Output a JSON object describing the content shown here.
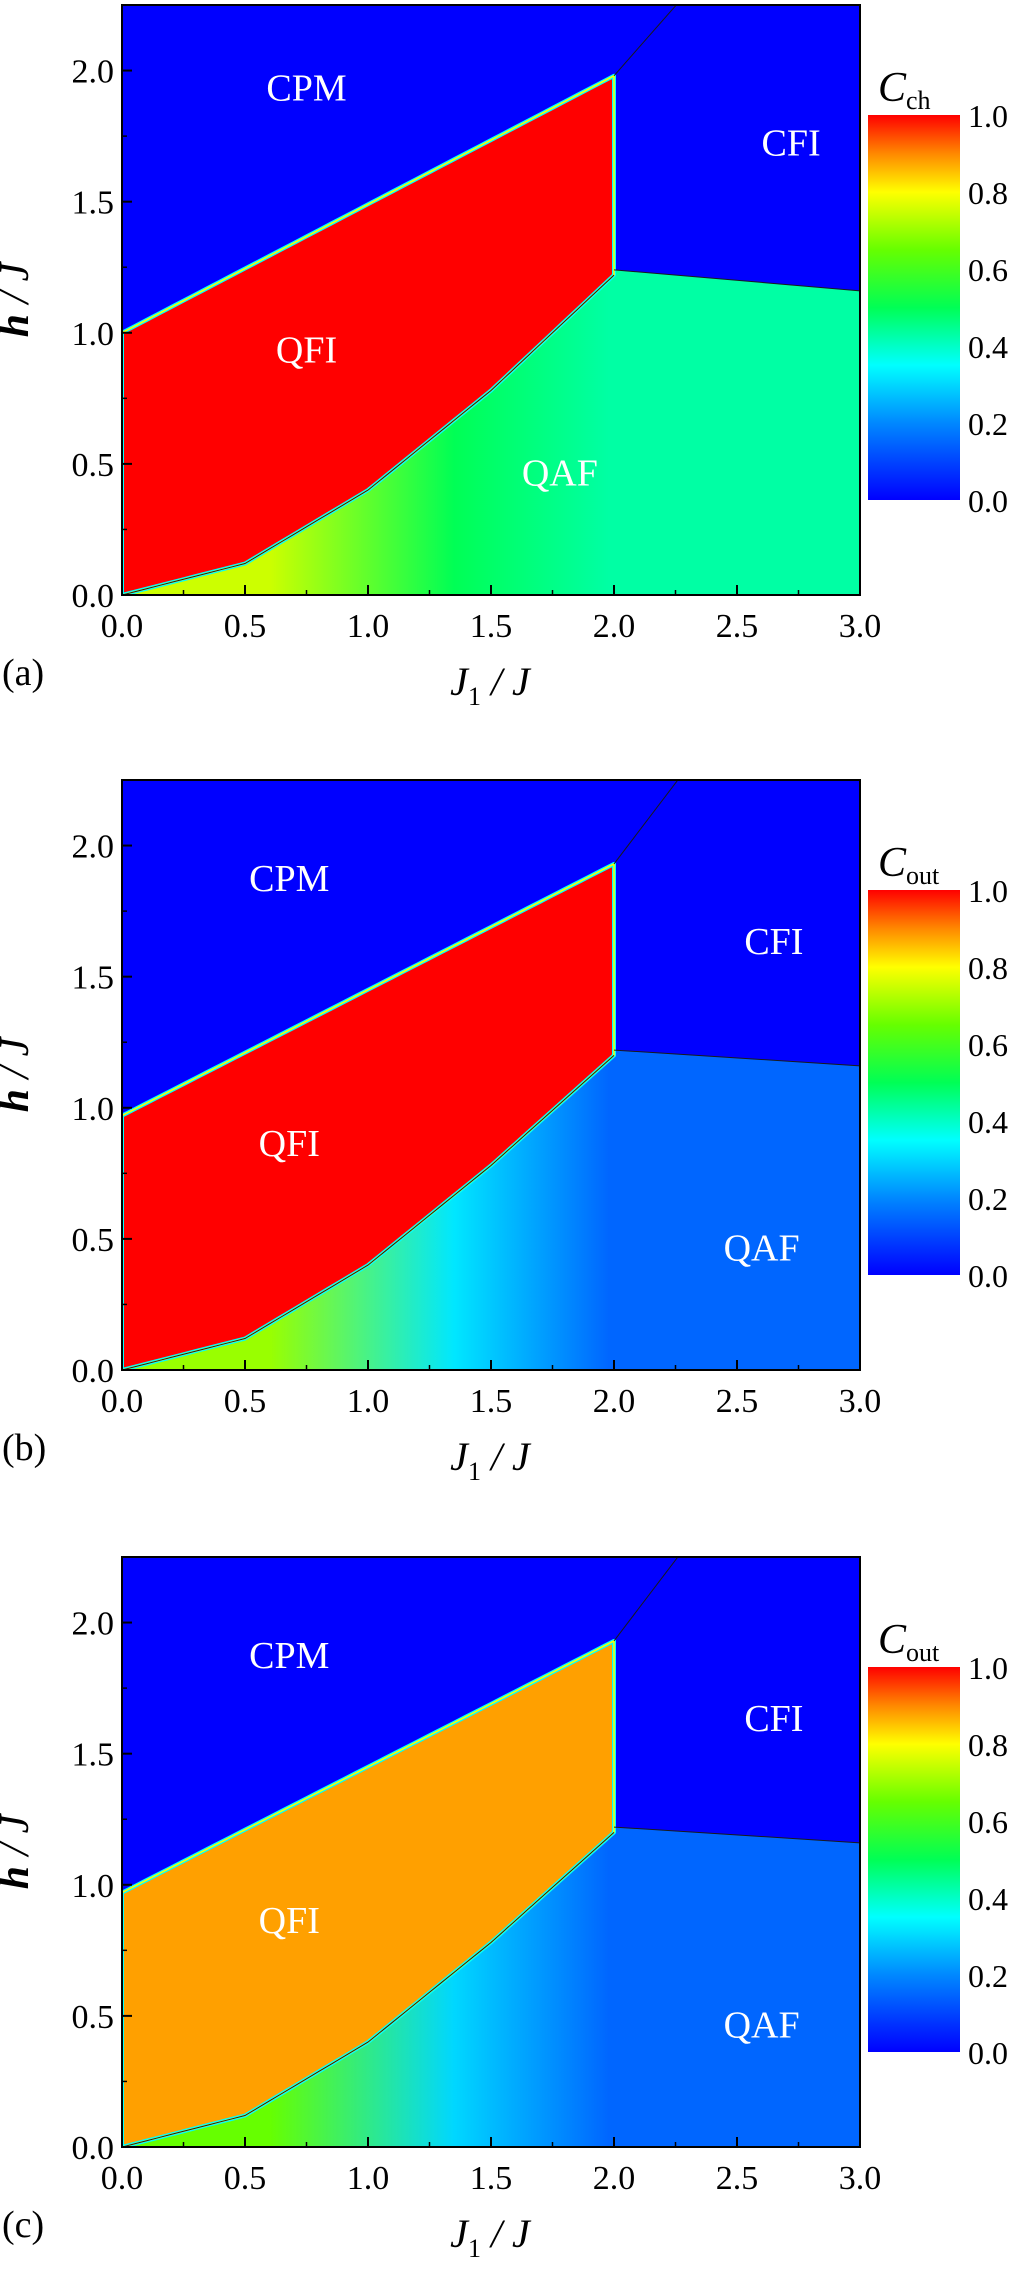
{
  "panels": [
    {
      "id": "a",
      "panel_label": "(a)",
      "xlabel_main": "J",
      "xlabel_sub": "1",
      "xlabel_tail": " / J",
      "ylabel_main": "h",
      "ylabel_tail": " / J",
      "colorbar_main": "C",
      "colorbar_sub": "ch",
      "colorbar_ticks": [
        "1.0",
        "0.8",
        "0.6",
        "0.4",
        "0.2",
        "0.0"
      ],
      "xticks": [
        "0.0",
        "0.5",
        "1.0",
        "1.5",
        "2.0",
        "2.5",
        "3.0"
      ],
      "yticks": [
        "0.0",
        "0.5",
        "1.0",
        "1.5",
        "2.0"
      ],
      "regions": [
        {
          "name": "CPM",
          "j1": 0.75,
          "h": 1.92
        },
        {
          "name": "CFI",
          "j1": 2.72,
          "h": 1.71
        },
        {
          "name": "QFI",
          "j1": 0.75,
          "h": 0.92
        },
        {
          "name": "QAF",
          "j1": 1.78,
          "h": 0.45
        }
      ],
      "fills": {
        "qfi": 1.0,
        "qaf_right": 0.43,
        "qaf_mid": 0.5,
        "qaf_low": 0.75
      }
    },
    {
      "id": "b",
      "panel_label": "(b)",
      "xlabel_main": "J",
      "xlabel_sub": "1",
      "xlabel_tail": " / J",
      "ylabel_main": "h",
      "ylabel_tail": " / J",
      "colorbar_main": "C",
      "colorbar_sub": "out",
      "colorbar_ticks": [
        "1.0",
        "0.8",
        "0.6",
        "0.4",
        "0.2",
        "0.0"
      ],
      "xticks": [
        "0.0",
        "0.5",
        "1.0",
        "1.5",
        "2.0",
        "2.5",
        "3.0"
      ],
      "yticks": [
        "0.0",
        "0.5",
        "1.0",
        "1.5",
        "2.0"
      ],
      "regions": [
        {
          "name": "CPM",
          "j1": 0.68,
          "h": 1.86
        },
        {
          "name": "CFI",
          "j1": 2.65,
          "h": 1.62
        },
        {
          "name": "QFI",
          "j1": 0.68,
          "h": 0.85
        },
        {
          "name": "QAF",
          "j1": 2.6,
          "h": 0.45
        }
      ],
      "fills": {
        "qfi": 1.0,
        "qaf_right": 0.15,
        "qaf_mid": 0.32,
        "qaf_low": 0.7
      }
    },
    {
      "id": "c",
      "panel_label": "(c)",
      "xlabel_main": "J",
      "xlabel_sub": "1",
      "xlabel_tail": " / J",
      "ylabel_main": "h",
      "ylabel_tail": " / J",
      "colorbar_main": "C",
      "colorbar_sub": "out",
      "colorbar_ticks": [
        "1.0",
        "0.8",
        "0.6",
        "0.4",
        "0.2",
        "0.0"
      ],
      "xticks": [
        "0.0",
        "0.5",
        "1.0",
        "1.5",
        "2.0",
        "2.5",
        "3.0"
      ],
      "yticks": [
        "0.0",
        "0.5",
        "1.0",
        "1.5",
        "2.0"
      ],
      "regions": [
        {
          "name": "CPM",
          "j1": 0.68,
          "h": 1.86
        },
        {
          "name": "CFI",
          "j1": 2.65,
          "h": 1.62
        },
        {
          "name": "QFI",
          "j1": 0.68,
          "h": 0.85
        },
        {
          "name": "QAF",
          "j1": 2.6,
          "h": 0.45
        }
      ],
      "fills": {
        "qfi": 0.88,
        "qaf_right": 0.15,
        "qaf_mid": 0.3,
        "qaf_low": 0.65
      }
    }
  ],
  "chart_data": [
    {
      "type": "heatmap",
      "panel": "(a)",
      "xlabel": "J1 / J",
      "ylabel": "h / J",
      "colorbar_label": "Cch",
      "xlim": [
        0,
        3
      ],
      "ylim": [
        0,
        2.25
      ],
      "clim": [
        0,
        1
      ],
      "phase_regions": [
        "CPM",
        "CFI",
        "QFI",
        "QAF"
      ],
      "boundaries": {
        "cpm_qfi_line": {
          "x": [
            0,
            2
          ],
          "y": [
            1.0,
            1.98
          ]
        },
        "qfi_qaf_curve": {
          "x": [
            0,
            0.5,
            1.0,
            1.5,
            2.0
          ],
          "y": [
            0,
            0.12,
            0.4,
            0.78,
            1.22
          ]
        },
        "vertical_at_j1": 2.0,
        "cfi_qaf_line": {
          "x": [
            2.0,
            3.0
          ],
          "y": [
            1.24,
            1.16
          ]
        }
      },
      "values": {
        "CPM": 0.0,
        "CFI": 0.0,
        "QFI": 1.0,
        "QAF": 0.43
      }
    },
    {
      "type": "heatmap",
      "panel": "(b)",
      "xlabel": "J1 / J",
      "ylabel": "h / J",
      "colorbar_label": "Cout",
      "xlim": [
        0,
        3
      ],
      "ylim": [
        0,
        2.25
      ],
      "clim": [
        0,
        1
      ],
      "phase_regions": [
        "CPM",
        "CFI",
        "QFI",
        "QAF"
      ],
      "boundaries": {
        "cpm_qfi_line": {
          "x": [
            0,
            2
          ],
          "y": [
            0.97,
            1.93
          ]
        },
        "qfi_qaf_curve": {
          "x": [
            0,
            0.5,
            1.0,
            1.5,
            2.0
          ],
          "y": [
            0,
            0.12,
            0.4,
            0.78,
            1.2
          ]
        },
        "vertical_at_j1": 2.0,
        "cfi_qaf_line": {
          "x": [
            2.0,
            3.0
          ],
          "y": [
            1.22,
            1.16
          ]
        }
      },
      "values": {
        "CPM": 0.0,
        "CFI": 0.0,
        "QFI": 1.0,
        "QAF": 0.15
      }
    },
    {
      "type": "heatmap",
      "panel": "(c)",
      "xlabel": "J1 / J",
      "ylabel": "h / J",
      "colorbar_label": "Cout",
      "xlim": [
        0,
        3
      ],
      "ylim": [
        0,
        2.25
      ],
      "clim": [
        0,
        1
      ],
      "phase_regions": [
        "CPM",
        "CFI",
        "QFI",
        "QAF"
      ],
      "boundaries": {
        "cpm_qfi_line": {
          "x": [
            0,
            2
          ],
          "y": [
            0.97,
            1.93
          ]
        },
        "qfi_qaf_curve": {
          "x": [
            0,
            0.5,
            1.0,
            1.5,
            2.0
          ],
          "y": [
            0,
            0.12,
            0.4,
            0.78,
            1.2
          ]
        },
        "vertical_at_j1": 2.0,
        "cfi_qaf_line": {
          "x": [
            2.0,
            3.0
          ],
          "y": [
            1.22,
            1.16
          ]
        }
      },
      "values": {
        "CPM": 0.0,
        "CFI": 0.0,
        "QFI": 0.88,
        "QAF": 0.15
      }
    }
  ]
}
